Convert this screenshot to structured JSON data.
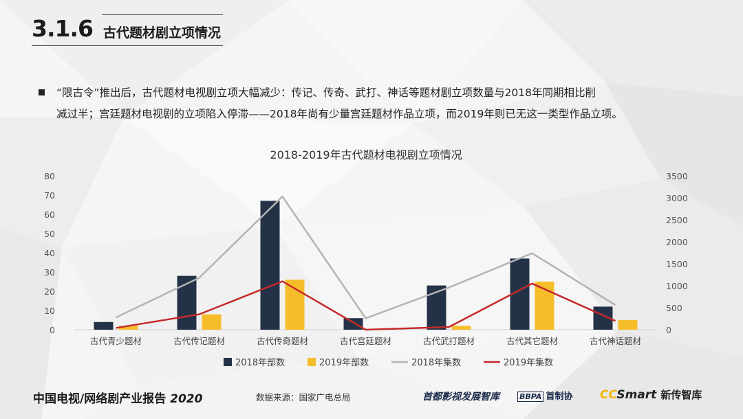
{
  "header": {
    "section_number": "3.1.6",
    "section_title": "古代题材剧立项情况"
  },
  "body": {
    "line1": "“限古令”推出后，古代题材电视剧立项大幅减少：传记、传奇、武打、神话等题材剧立项数量与2018年同期相比削",
    "line2": "减过半；宫廷题材电视剧的立项陷入停滞——2018年尚有少量宫廷题材作品立项，而2019年则已无这一类型作品立项。"
  },
  "chart_data": {
    "type": "bar",
    "title": "2018-2019年古代题材电视剧立项情况",
    "categories": [
      "古代青少题材",
      "古代传记题材",
      "古代传奇题材",
      "古代宫廷题材",
      "古代武打题材",
      "古代其它题材",
      "古代神话题材"
    ],
    "y_left": {
      "min": 0,
      "max": 80,
      "ticks": [
        "0",
        "10",
        "20",
        "30",
        "40",
        "50",
        "60",
        "70",
        "80"
      ]
    },
    "y_right": {
      "min": 0,
      "max": 3500,
      "ticks": [
        "0",
        "500",
        "1000",
        "1500",
        "2000",
        "2500",
        "3000",
        "3500"
      ]
    },
    "series": [
      {
        "name": "2018年部数",
        "kind": "bar",
        "axis": "left",
        "color": "#243247",
        "values": [
          4,
          28,
          67,
          6,
          23,
          37,
          12
        ]
      },
      {
        "name": "2019年部数",
        "kind": "bar",
        "axis": "left",
        "color": "#f6bd2b",
        "values": [
          2,
          8,
          26,
          0,
          2,
          25,
          5
        ]
      },
      {
        "name": "2018年集数",
        "kind": "line",
        "axis": "right",
        "color": "#b3b3b3",
        "values": [
          280,
          1180,
          3030,
          260,
          960,
          1740,
          560
        ]
      },
      {
        "name": "2019年集数",
        "kind": "line",
        "axis": "right",
        "color": "#c42a2a",
        "values": [
          40,
          350,
          1100,
          0,
          60,
          1050,
          200
        ]
      }
    ],
    "legend_position": "bottom",
    "grid": false
  },
  "footer": {
    "title": "中国电视/网络剧产业报告",
    "year": "2020",
    "source": "数据来源：国家广电总局",
    "logo1": "首都影视发展智库",
    "logo2_box": "BBPA",
    "logo2_text": "首制协",
    "logo3_cc": "CC",
    "logo3_smart": "Smart",
    "logo3_cn": "新传智库"
  }
}
